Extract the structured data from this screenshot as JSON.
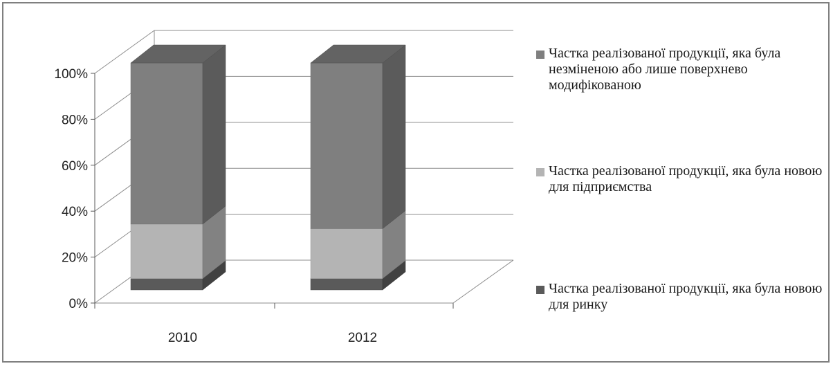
{
  "chart_data": {
    "type": "bar",
    "stacked": true,
    "three_d": true,
    "percent_stacked": true,
    "categories": [
      "2010",
      "2012"
    ],
    "series": [
      {
        "name": "Частка реалізованої продукції, яка була новою для ринку",
        "values": [
          5,
          5
        ],
        "color": "#5a5a5a"
      },
      {
        "name": "Частка реалізованої продукції, яка була новою для підприємства",
        "values": [
          24,
          22
        ],
        "color": "#b4b4b4"
      },
      {
        "name": "Частка реалізованої продукції, яка була незміненою або лише поверхнево модифікованою",
        "values": [
          71,
          73
        ],
        "color": "#7f7f7f"
      }
    ],
    "yticks": [
      "0%",
      "20%",
      "40%",
      "60%",
      "80%",
      "100%"
    ],
    "ylim": [
      0,
      100
    ],
    "grid": true,
    "legend_position": "right"
  }
}
